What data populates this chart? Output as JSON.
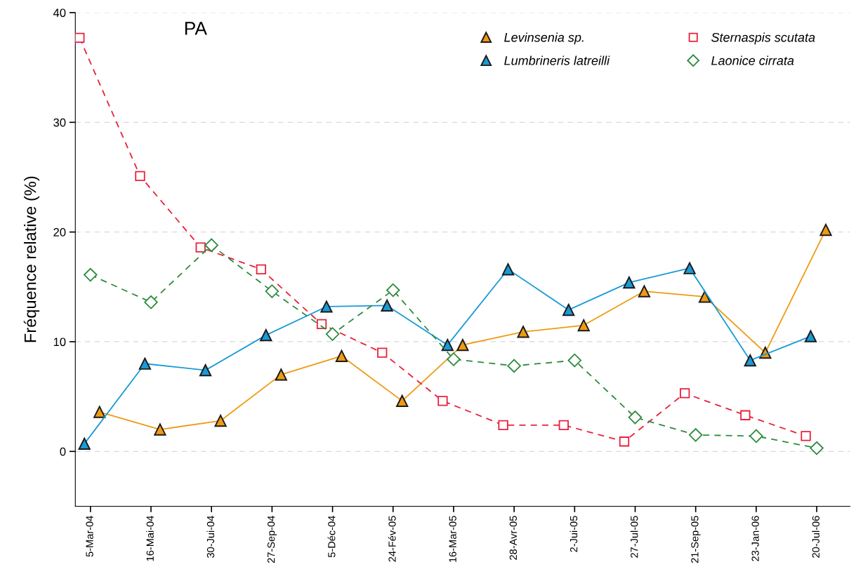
{
  "chart_data": {
    "type": "line",
    "ylabel": "Fréquence relative (%)",
    "categories": [
      "5-Mar-04",
      "16-Mai-04",
      "30-Jui-04",
      "27-Sep-04",
      "5-Déc-04",
      "24-Fév-05",
      "16-Mar-05",
      "28-Avr-05",
      "2-Jui-05",
      "27-Jul-05",
      "21-Sep-05",
      "23-Jan-06",
      "20-Jul-06"
    ],
    "series": [
      {
        "name": "Levinsenia sp.",
        "color": "#ef9a12",
        "marker": "triangle",
        "line_style": "solid",
        "values": [
          3.6,
          2.0,
          2.8,
          7.0,
          8.7,
          4.6,
          9.7,
          10.9,
          11.5,
          14.6,
          14.1,
          9.0,
          20.2
        ]
      },
      {
        "name": "Lumbrineris latreilli",
        "color": "#1a9ad6",
        "marker": "triangle",
        "line_style": "solid",
        "values": [
          0.7,
          8.0,
          7.4,
          10.6,
          13.2,
          13.3,
          9.7,
          16.6,
          12.9,
          15.4,
          16.7,
          8.3,
          10.5
        ]
      },
      {
        "name": "Sternaspis scutata",
        "color": "#e8213a",
        "marker": "square",
        "line_style": "dashed",
        "values": [
          37.7,
          25.1,
          18.6,
          16.6,
          11.6,
          9.0,
          4.6,
          2.4,
          2.4,
          0.9,
          5.3,
          3.3,
          1.4
        ]
      },
      {
        "name": "Laonice cirrata",
        "color": "#2e8b3e",
        "marker": "diamond",
        "line_style": "dashed",
        "values": [
          16.1,
          13.6,
          18.8,
          14.6,
          10.7,
          14.7,
          8.4,
          7.8,
          8.3,
          3.1,
          1.5,
          1.4,
          0.3
        ]
      }
    ],
    "ylim": [
      -5,
      40
    ],
    "yticks": [
      0,
      10,
      20,
      30,
      40
    ],
    "grid": "y",
    "legend": "top right",
    "annotations": [
      "PA"
    ]
  }
}
